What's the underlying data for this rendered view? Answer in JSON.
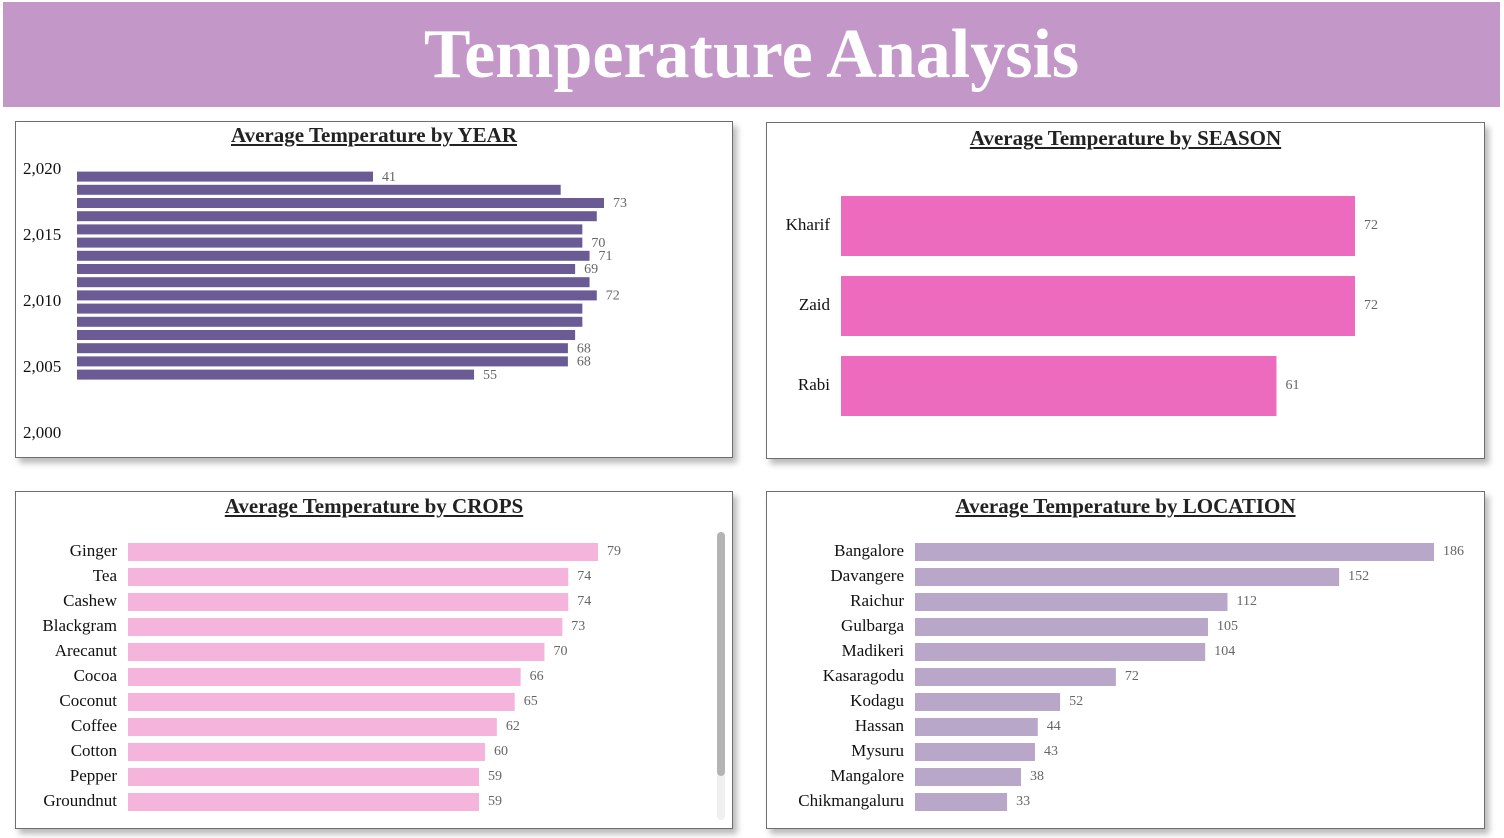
{
  "header": {
    "title": "Temperature Analysis"
  },
  "colors": {
    "header_bg": "#c398c9",
    "year_bar": "#6b5b95",
    "season_bar": "#ec6bbf",
    "crops_bar": "#f5b4dc",
    "location_bar": "#b9a7c9"
  },
  "chart_data": [
    {
      "id": "year",
      "type": "bar",
      "orientation": "horizontal",
      "title": "Average Temperature by YEAR",
      "y_ticks": [
        "2,020",
        "2,015",
        "2,010",
        "2,005",
        "2,000"
      ],
      "y_tick_values": [
        2020,
        2015,
        2010,
        2005,
        2000
      ],
      "ylim": [
        2000,
        2020
      ],
      "bars": [
        {
          "year": 2019,
          "value": 41,
          "label": "41"
        },
        {
          "year": 2018,
          "value": 67,
          "label": ""
        },
        {
          "year": 2017,
          "value": 73,
          "label": "73"
        },
        {
          "year": 2016,
          "value": 72,
          "label": ""
        },
        {
          "year": 2015,
          "value": 70,
          "label": ""
        },
        {
          "year": 2014,
          "value": 70,
          "label": "70"
        },
        {
          "year": 2013,
          "value": 71,
          "label": "71"
        },
        {
          "year": 2012,
          "value": 69,
          "label": "69"
        },
        {
          "year": 2011,
          "value": 71,
          "label": ""
        },
        {
          "year": 2010,
          "value": 72,
          "label": "72"
        },
        {
          "year": 2009,
          "value": 70,
          "label": ""
        },
        {
          "year": 2008,
          "value": 70,
          "label": ""
        },
        {
          "year": 2007,
          "value": 69,
          "label": ""
        },
        {
          "year": 2006,
          "value": 68,
          "label": "68"
        },
        {
          "year": 2005,
          "value": 68,
          "label": "68"
        },
        {
          "year": 2004,
          "value": 55,
          "label": "55"
        }
      ],
      "xlim": [
        0,
        73
      ]
    },
    {
      "id": "season",
      "type": "bar",
      "orientation": "horizontal",
      "title": "Average Temperature by SEASON",
      "categories": [
        "Kharif",
        "Zaid",
        "Rabi"
      ],
      "values": [
        72,
        72,
        61
      ],
      "labels": [
        "72",
        "72",
        "61"
      ],
      "xlim": [
        0,
        72
      ]
    },
    {
      "id": "crops",
      "type": "bar",
      "orientation": "horizontal",
      "title": "Average Temperature by CROPS",
      "categories": [
        "Ginger",
        "Tea",
        "Cashew",
        "Blackgram",
        "Arecanut",
        "Cocoa",
        "Coconut",
        "Coffee",
        "Cotton",
        "Pepper",
        "Groundnut"
      ],
      "values": [
        79,
        74,
        74,
        73,
        70,
        66,
        65,
        62,
        60,
        59,
        59
      ],
      "labels": [
        "79",
        "74",
        "74",
        "73",
        "70",
        "66",
        "65",
        "62",
        "60",
        "59",
        "59"
      ],
      "xlim": [
        0,
        79
      ]
    },
    {
      "id": "location",
      "type": "bar",
      "orientation": "horizontal",
      "title": "Average Temperature by LOCATION",
      "categories": [
        "Bangalore",
        "Davangere",
        "Raichur",
        "Gulbarga",
        "Madikeri",
        "Kasaragodu",
        "Kodagu",
        "Hassan",
        "Mysuru",
        "Mangalore",
        "Chikmangaluru"
      ],
      "values": [
        186,
        152,
        112,
        105,
        104,
        72,
        52,
        44,
        43,
        38,
        33
      ],
      "labels": [
        "186",
        "152",
        "112",
        "105",
        "104",
        "72",
        "52",
        "44",
        "43",
        "38",
        "33"
      ],
      "xlim": [
        0,
        186
      ]
    }
  ]
}
